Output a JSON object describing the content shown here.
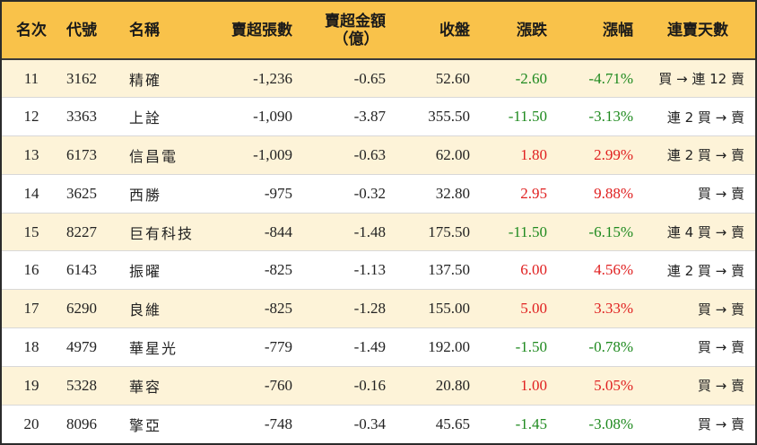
{
  "headers": {
    "rank": "名次",
    "code": "代號",
    "name": "名稱",
    "sell_lots": "賣超張數",
    "sell_amount_line1": "賣超金額",
    "sell_amount_line2": "（億）",
    "close": "收盤",
    "change": "漲跌",
    "change_pct": "漲幅",
    "streak": "連賣天數"
  },
  "rows": [
    {
      "rank": "11",
      "code": "3162",
      "name": "精確",
      "lots": "-1,236",
      "amount": "-0.65",
      "close": "52.60",
      "change": "-2.60",
      "pct": "-4.71%",
      "streak": "買 → 連 12 賣"
    },
    {
      "rank": "12",
      "code": "3363",
      "name": "上詮",
      "lots": "-1,090",
      "amount": "-3.87",
      "close": "355.50",
      "change": "-11.50",
      "pct": "-3.13%",
      "streak": "連 2 買 → 賣"
    },
    {
      "rank": "13",
      "code": "6173",
      "name": "信昌電",
      "lots": "-1,009",
      "amount": "-0.63",
      "close": "62.00",
      "change": "1.80",
      "pct": "2.99%",
      "streak": "連 2 買 → 賣"
    },
    {
      "rank": "14",
      "code": "3625",
      "name": "西勝",
      "lots": "-975",
      "amount": "-0.32",
      "close": "32.80",
      "change": "2.95",
      "pct": "9.88%",
      "streak": "買 → 賣"
    },
    {
      "rank": "15",
      "code": "8227",
      "name": "巨有科技",
      "lots": "-844",
      "amount": "-1.48",
      "close": "175.50",
      "change": "-11.50",
      "pct": "-6.15%",
      "streak": "連 4 買 → 賣"
    },
    {
      "rank": "16",
      "code": "6143",
      "name": "振曜",
      "lots": "-825",
      "amount": "-1.13",
      "close": "137.50",
      "change": "6.00",
      "pct": "4.56%",
      "streak": "連 2 買 → 賣"
    },
    {
      "rank": "17",
      "code": "6290",
      "name": "良維",
      "lots": "-825",
      "amount": "-1.28",
      "close": "155.00",
      "change": "5.00",
      "pct": "3.33%",
      "streak": "買 → 賣"
    },
    {
      "rank": "18",
      "code": "4979",
      "name": "華星光",
      "lots": "-779",
      "amount": "-1.49",
      "close": "192.00",
      "change": "-1.50",
      "pct": "-0.78%",
      "streak": "買 → 賣"
    },
    {
      "rank": "19",
      "code": "5328",
      "name": "華容",
      "lots": "-760",
      "amount": "-0.16",
      "close": "20.80",
      "change": "1.00",
      "pct": "5.05%",
      "streak": "買 → 賣"
    },
    {
      "rank": "20",
      "code": "8096",
      "name": "擎亞",
      "lots": "-748",
      "amount": "-0.34",
      "close": "45.65",
      "change": "-1.45",
      "pct": "-3.08%",
      "streak": "買 → 賣"
    }
  ],
  "colors": {
    "header_bg": "#f9c24a",
    "odd_row_bg": "#fdf3d8",
    "positive": "#e02020",
    "negative": "#1f8a1f"
  }
}
